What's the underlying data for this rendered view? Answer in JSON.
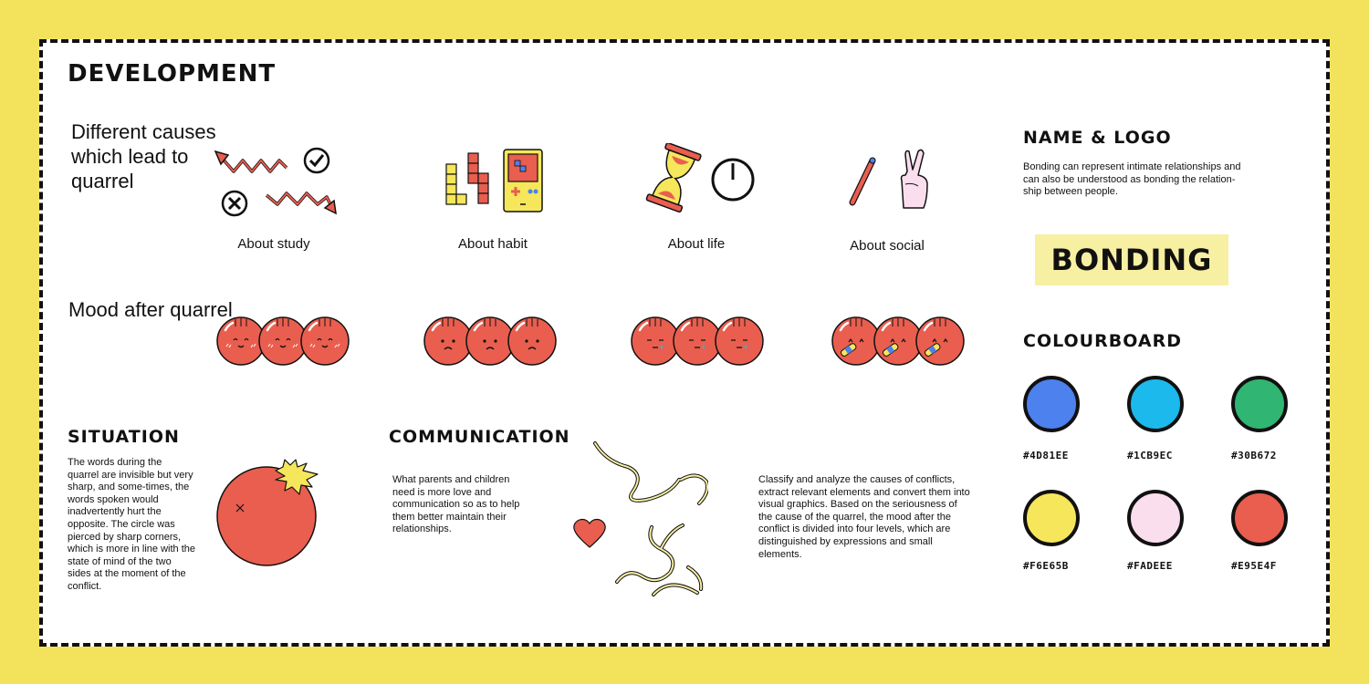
{
  "development": {
    "title": "DEVELOPMENT",
    "intro_causes": [
      "Different causes",
      "which lead to",
      "quarrel"
    ],
    "categories": [
      {
        "label": "About study",
        "icons": [
          "zigzag-arrow-icon",
          "check-circle-icon",
          "cross-circle-icon"
        ]
      },
      {
        "label": "About habit",
        "icons": [
          "tetris-blocks-icon",
          "game-console-icon"
        ]
      },
      {
        "label": "About life",
        "icons": [
          "hourglass-icon",
          "clock-icon"
        ]
      },
      {
        "label": "About social",
        "icons": [
          "pencil-icon",
          "crossed-fingers-icon"
        ]
      }
    ],
    "mood_label": "Mood after quarrel",
    "moods": [
      "happy",
      "sad",
      "crying",
      "bandaged"
    ]
  },
  "situation": {
    "title": "SITUATION",
    "text": "The words during the quarrel are invisible but very sharp, and some-times, the words spoken would inadvertently hurt the opposite. The circle was pierced by sharp corners, which is more in line with the state of mind of the two sides at the moment of the conflict."
  },
  "communication": {
    "title": "COMMUNICATION",
    "text": "What parents and children need is more love and communication so as to help them better maintain their relationships.",
    "analysis": "Classify and analyze the causes of conflicts, extract relevant elements and convert them into visual graphics. Based on the seriousness of the cause of the quarrel, the mood after the conflict is divided into four levels, which are distinguished by expressions and small elements."
  },
  "name_logo": {
    "title": "NAME & LOGO",
    "text": "Bonding can represent intimate relationships and can also be understood as bonding the relation-ship between people.",
    "logo": "BONDING"
  },
  "colourboard": {
    "title": "COLOURBOARD",
    "colors": [
      {
        "hex": "#4D81EE",
        "label": "#4D81EE"
      },
      {
        "hex": "#1CB9EC",
        "label": "#1CB9EC"
      },
      {
        "hex": "#30B672",
        "label": "#30B672"
      },
      {
        "hex": "#F6E65B",
        "label": "#F6E65B"
      },
      {
        "hex": "#FADEEE",
        "label": "#FADEEE"
      },
      {
        "hex": "#E95E4F",
        "label": "#E95E4F"
      }
    ]
  }
}
